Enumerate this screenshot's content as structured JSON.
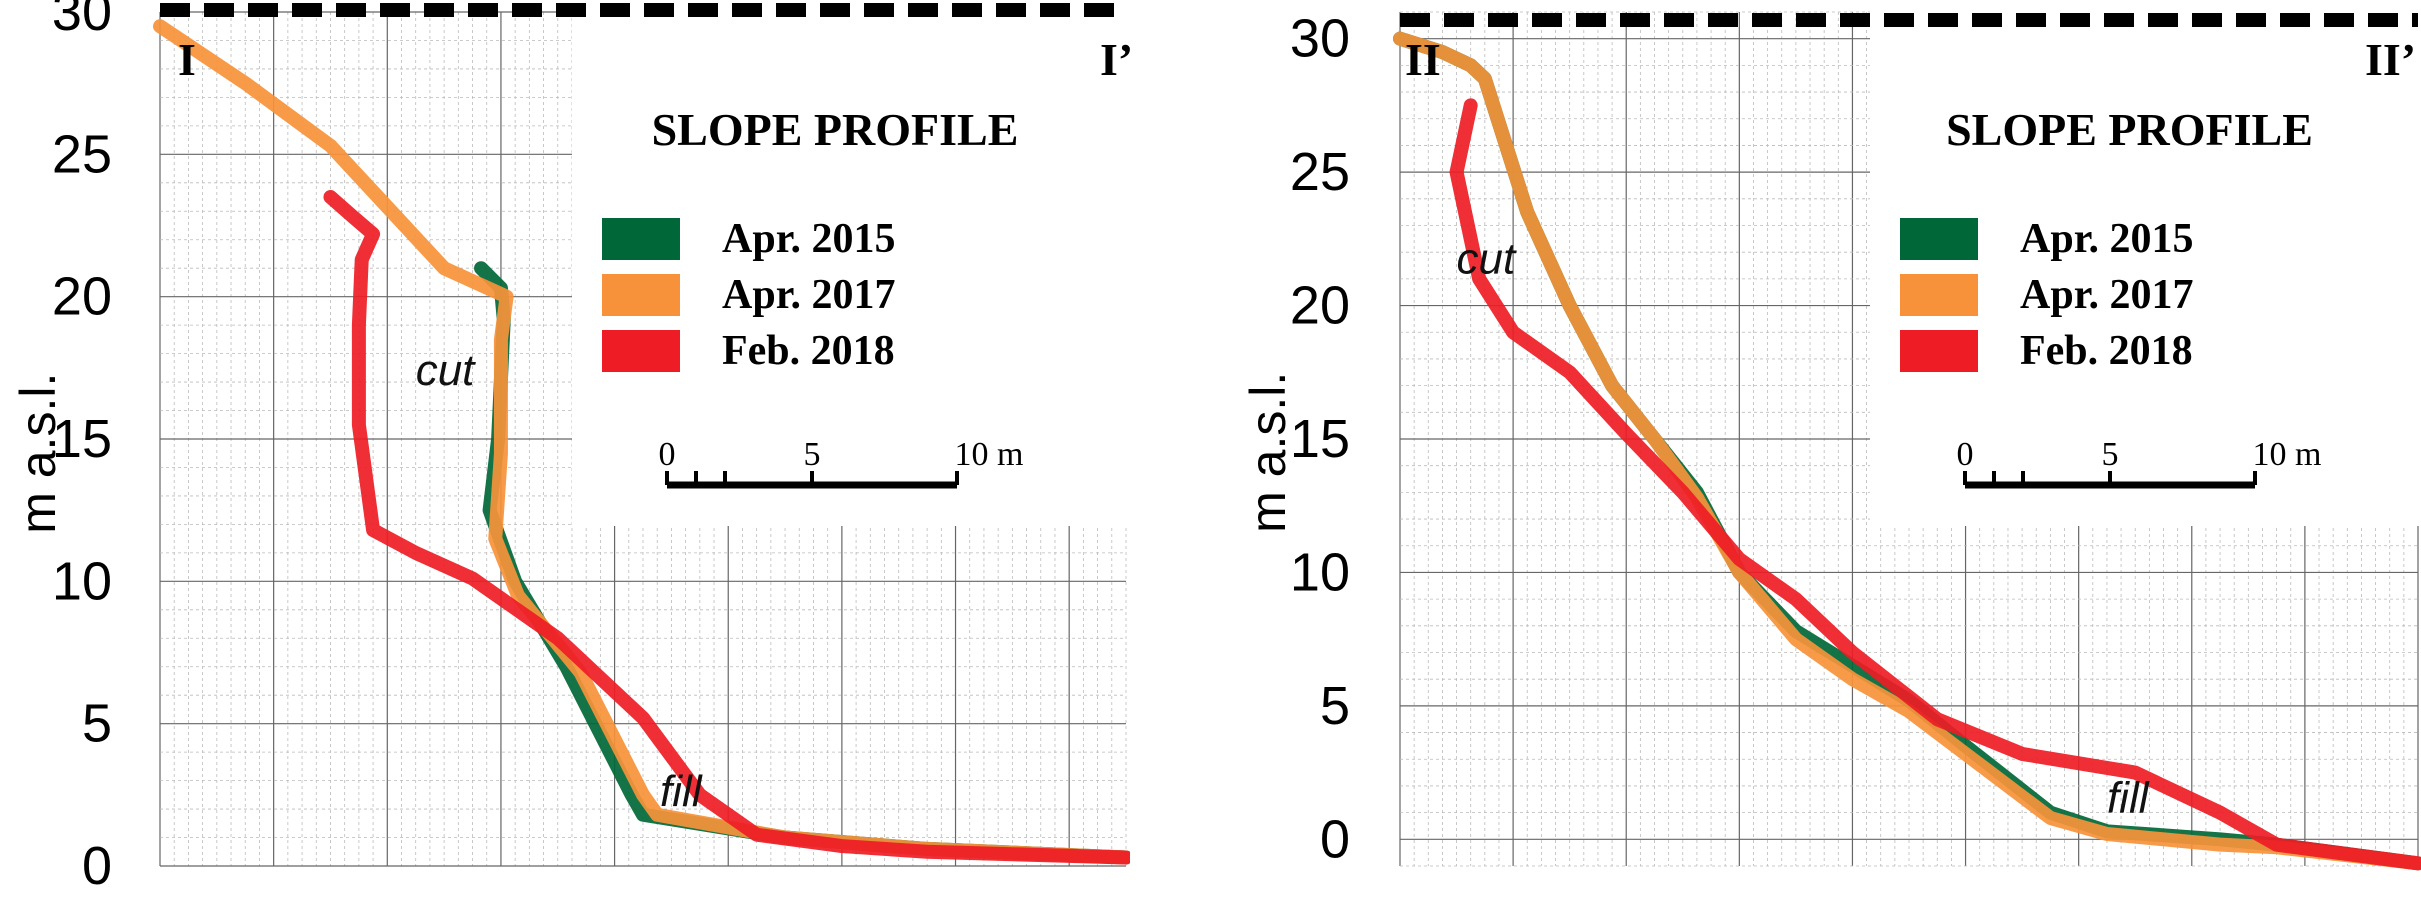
{
  "chart_data": [
    {
      "type": "line",
      "title": "SLOPE PROFILE",
      "ylabel": "m a.s.l.",
      "ylim": [
        0,
        30
      ],
      "xlim": [
        0,
        34
      ],
      "yticks": [
        0,
        5,
        10,
        15,
        20,
        25,
        30
      ],
      "grid": true,
      "legend_position": "top-right",
      "section_start": "I",
      "section_end": "I’",
      "scale_bar": {
        "labels": [
          "0",
          "5",
          "10 m"
        ]
      },
      "annotations": [
        {
          "text": "cut",
          "x": 9.0,
          "y": 16.9
        },
        {
          "text": "fill",
          "x": 17.6,
          "y": 2.1
        }
      ],
      "series": [
        {
          "name": "Apr. 2015",
          "color": "#006838",
          "x": [
            11.3,
            12.0,
            12.1,
            11.9,
            11.6,
            12.5,
            14.3,
            16.6,
            17.0,
            22.0,
            27.0,
            34.0
          ],
          "y": [
            21.0,
            20.3,
            19.2,
            15.0,
            12.5,
            10.0,
            7.0,
            2.5,
            1.8,
            1.0,
            0.6,
            0.3
          ]
        },
        {
          "name": "Apr. 2017",
          "color": "#F7923A",
          "x": [
            0.0,
            3.0,
            6.0,
            10.0,
            12.2,
            12.0,
            12.0,
            11.8,
            12.6,
            14.8,
            17.0,
            17.5,
            22.0,
            27.0,
            34.0
          ],
          "y": [
            29.5,
            27.5,
            25.3,
            21.0,
            20.0,
            18.5,
            14.5,
            11.5,
            9.5,
            6.8,
            2.5,
            1.8,
            1.0,
            0.6,
            0.3
          ]
        },
        {
          "name": "Feb. 2018",
          "color": "#EE1C25",
          "x": [
            6.0,
            6.8,
            7.5,
            7.1,
            7.0,
            7.0,
            7.5,
            9.0,
            11.0,
            14.0,
            17.0,
            19.0,
            21.0,
            24.0,
            27.0,
            34.0
          ],
          "y": [
            23.5,
            22.8,
            22.2,
            21.3,
            19.0,
            15.5,
            11.8,
            11.0,
            10.1,
            8.0,
            5.2,
            2.5,
            1.1,
            0.7,
            0.5,
            0.3
          ]
        }
      ]
    },
    {
      "type": "line",
      "title": "SLOPE PROFILE",
      "ylabel": "m a.s.l.",
      "ylim": [
        -1,
        31
      ],
      "xlim": [
        0,
        36
      ],
      "yticks": [
        0,
        5,
        10,
        15,
        20,
        25,
        30
      ],
      "grid": true,
      "legend_position": "top-right",
      "section_start": "II",
      "section_end": "II’",
      "scale_bar": {
        "labels": [
          "0",
          "5",
          "10 m"
        ]
      },
      "annotations": [
        {
          "text": "cut",
          "x": 2.0,
          "y": 21.2
        },
        {
          "text": "fill",
          "x": 25.0,
          "y": 1.0
        }
      ],
      "series": [
        {
          "name": "Apr. 2015",
          "color": "#006838",
          "x": [
            0.0,
            1.5,
            2.5,
            3.0,
            4.5,
            6.0,
            7.5,
            9.0,
            10.5,
            12.0,
            14.0,
            16.0,
            18.0,
            20.0,
            23.0,
            25.0,
            29.0,
            31.0,
            36.0
          ],
          "y": [
            30.0,
            29.5,
            29.0,
            28.5,
            23.5,
            20.0,
            17.0,
            15.0,
            13.0,
            10.0,
            7.8,
            6.5,
            5.2,
            3.5,
            1.0,
            0.3,
            0.0,
            -0.2,
            -0.9
          ]
        },
        {
          "name": "Apr. 2017",
          "color": "#F7923A",
          "x": [
            0.0,
            1.5,
            2.5,
            3.0,
            4.5,
            6.0,
            7.5,
            9.0,
            10.5,
            12.0,
            14.0,
            16.0,
            18.0,
            20.0,
            23.0,
            25.0,
            29.0,
            31.0,
            36.0
          ],
          "y": [
            30.0,
            29.5,
            29.0,
            28.5,
            23.5,
            20.0,
            17.0,
            15.0,
            12.8,
            10.0,
            7.5,
            6.0,
            4.8,
            3.2,
            0.8,
            0.2,
            -0.2,
            -0.3,
            -0.9
          ]
        },
        {
          "name": "Feb. 2018",
          "color": "#EE1C25",
          "x": [
            2.5,
            2.0,
            2.8,
            4.0,
            6.0,
            8.0,
            10.0,
            12.0,
            14.0,
            16.0,
            19.0,
            22.0,
            26.0,
            29.0,
            31.0,
            36.0
          ],
          "y": [
            27.5,
            25.0,
            21.0,
            19.0,
            17.5,
            15.2,
            13.0,
            10.5,
            9.0,
            7.0,
            4.5,
            3.2,
            2.5,
            1.0,
            -0.2,
            -0.9
          ]
        }
      ]
    }
  ]
}
